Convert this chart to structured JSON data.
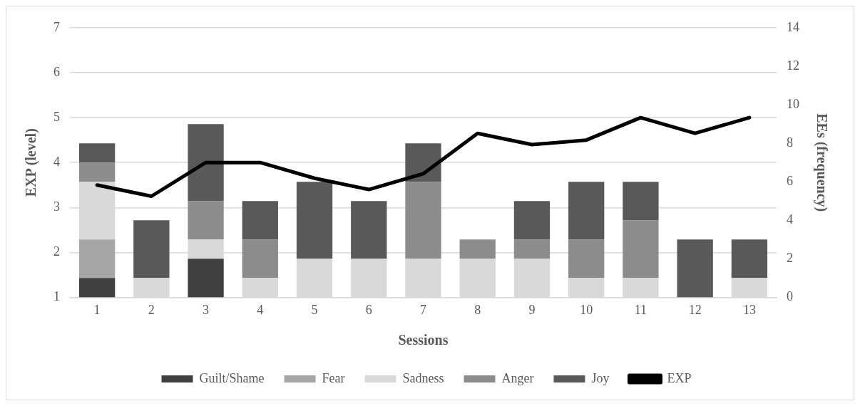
{
  "chart_data": {
    "type": "bar",
    "stacked": true,
    "xlabel": "Sessions",
    "ylabel": "EXP (level)",
    "y2label": "EEs (frequency)",
    "categories": [
      "1",
      "2",
      "3",
      "4",
      "5",
      "6",
      "7",
      "8",
      "9",
      "10",
      "11",
      "12",
      "13"
    ],
    "series": [
      {
        "name": "Guilt/Shame",
        "color": "#404040",
        "axis": "y2",
        "values": [
          1,
          0,
          2,
          0,
          0,
          0,
          0,
          0,
          0,
          0,
          0,
          0,
          0
        ]
      },
      {
        "name": "Fear",
        "color": "#a6a6a6",
        "axis": "y2",
        "values": [
          2,
          0,
          0,
          0,
          0,
          0,
          0,
          0,
          0,
          0,
          0,
          0,
          0
        ]
      },
      {
        "name": "Sadness",
        "color": "#d9d9d9",
        "axis": "y2",
        "values": [
          3,
          1,
          1,
          1,
          2,
          2,
          2,
          2,
          2,
          1,
          1,
          0,
          1
        ]
      },
      {
        "name": "Anger",
        "color": "#8c8c8c",
        "axis": "y2",
        "values": [
          1,
          0,
          2,
          2,
          0,
          0,
          4,
          1,
          1,
          2,
          3,
          0,
          0
        ]
      },
      {
        "name": "Joy",
        "color": "#595959",
        "axis": "y2",
        "values": [
          1,
          3,
          4,
          2,
          4,
          3,
          2,
          0,
          2,
          3,
          2,
          3,
          2
        ]
      },
      {
        "name": "EXP",
        "type": "line",
        "color": "#000000",
        "values": [
          3.5,
          3.25,
          4,
          4,
          3.65,
          3.4,
          3.75,
          4.65,
          4.4,
          4.5,
          5,
          4.65,
          5
        ]
      }
    ],
    "ylim": [
      1,
      7
    ],
    "yticks": [
      1,
      2,
      3,
      4,
      5,
      6,
      7
    ],
    "y2lim": [
      0,
      14
    ],
    "y2ticks": [
      0,
      2,
      4,
      6,
      8,
      10,
      12,
      14
    ],
    "grid": "y",
    "legend": "bottom",
    "marker": "none"
  }
}
